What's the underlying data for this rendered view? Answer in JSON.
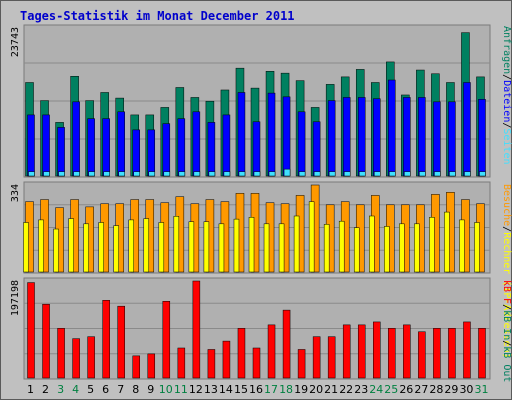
{
  "title": "Tages-Statistik im Monat December 2011",
  "colors": {
    "frame_bg": "#c0c0c0",
    "plot_bg": "#b0b0b0",
    "hits": "#008060",
    "files": "#0000ff",
    "pages": "#40e0ff",
    "visits": "#ff9900",
    "sites": "#ffff00",
    "kbytes": "#ff0000",
    "title": "#0000cc",
    "weekend_day": "#008040",
    "weekday": "#000000"
  },
  "chart_data": [
    {
      "type": "bar",
      "panel": "top",
      "ymax_label": "23743",
      "ylim": [
        0,
        23743
      ],
      "legend": [
        {
          "text": "Anfragen",
          "color": "#008060"
        },
        {
          "text": "/",
          "color": "#000000"
        },
        {
          "text": "Dateien",
          "color": "#0000ff"
        },
        {
          "text": "/",
          "color": "#000000"
        },
        {
          "text": "Seiten",
          "color": "#40e0ff"
        }
      ],
      "categories": [
        "1",
        "2",
        "3",
        "4",
        "5",
        "6",
        "7",
        "8",
        "9",
        "10",
        "11",
        "12",
        "13",
        "14",
        "15",
        "16",
        "17",
        "18",
        "19",
        "20",
        "21",
        "22",
        "23",
        "24",
        "25",
        "26",
        "27",
        "28",
        "29",
        "30",
        "31"
      ],
      "series": [
        {
          "name": "Anfragen",
          "color": "#008060",
          "values": [
            15000,
            12100,
            8600,
            16000,
            12100,
            13400,
            12500,
            9800,
            9800,
            11000,
            14200,
            12600,
            12000,
            13800,
            17300,
            14100,
            16800,
            16500,
            15300,
            11000,
            14700,
            15900,
            17100,
            15000,
            18300,
            13000,
            17000,
            16400,
            15000,
            23000,
            15900
          ]
        },
        {
          "name": "Dateien",
          "color": "#0000ff",
          "values": [
            9800,
            9800,
            7800,
            11900,
            9200,
            9200,
            10300,
            7400,
            7400,
            8400,
            9200,
            10300,
            8600,
            9800,
            13400,
            8700,
            13300,
            12700,
            10300,
            8700,
            12100,
            12600,
            12600,
            12400,
            15400,
            12600,
            12600,
            11900,
            11900,
            15000,
            12300
          ]
        },
        {
          "name": "Seiten",
          "color": "#40e0ff",
          "values": [
            700,
            700,
            700,
            700,
            700,
            700,
            700,
            700,
            700,
            700,
            700,
            700,
            700,
            700,
            700,
            700,
            700,
            1100,
            700,
            700,
            700,
            700,
            700,
            700,
            700,
            700,
            700,
            700,
            700,
            700,
            700
          ]
        }
      ]
    },
    {
      "type": "bar",
      "panel": "middle",
      "ymax_label": "334",
      "ylim": [
        0,
        334
      ],
      "legend": [
        {
          "text": "Besuche",
          "color": "#ff9900"
        },
        {
          "text": "/",
          "color": "#000000"
        },
        {
          "text": "Rechner (IP-Adressen)",
          "color": "#ffff00"
        }
      ],
      "categories": [
        "1",
        "2",
        "3",
        "4",
        "5",
        "6",
        "7",
        "8",
        "9",
        "10",
        "11",
        "12",
        "13",
        "14",
        "15",
        "16",
        "17",
        "18",
        "19",
        "20",
        "21",
        "22",
        "23",
        "24",
        "25",
        "26",
        "27",
        "28",
        "29",
        "30",
        "31"
      ],
      "series": [
        {
          "name": "Besuche",
          "color": "#ff9900",
          "values": [
            270,
            278,
            247,
            278,
            250,
            262,
            262,
            278,
            278,
            266,
            289,
            262,
            278,
            270,
            302,
            302,
            266,
            262,
            294,
            334,
            258,
            270,
            258,
            294,
            258,
            258,
            258,
            298,
            306,
            278,
            262
          ]
        },
        {
          "name": "Rechner (IP-Adressen)",
          "color": "#ffff00",
          "values": [
            190,
            200,
            165,
            205,
            185,
            190,
            178,
            200,
            205,
            190,
            214,
            193,
            193,
            185,
            203,
            210,
            185,
            185,
            215,
            270,
            183,
            195,
            170,
            215,
            175,
            185,
            185,
            210,
            230,
            200,
            190
          ]
        }
      ]
    },
    {
      "type": "bar",
      "panel": "bottom",
      "ymax_label": "197198",
      "ylim": [
        0,
        197198
      ],
      "legend": [
        {
          "text": "kB F",
          "color": "#ff0000"
        },
        {
          "text": "/",
          "color": "#000000"
        },
        {
          "text": "kB In",
          "color": "#008060"
        },
        {
          "text": "/",
          "color": "#000000"
        },
        {
          "text": "kB Out",
          "color": "#008060"
        }
      ],
      "categories": [
        "1",
        "2",
        "3",
        "4",
        "5",
        "6",
        "7",
        "8",
        "9",
        "10",
        "11",
        "12",
        "13",
        "14",
        "15",
        "16",
        "17",
        "18",
        "19",
        "20",
        "21",
        "22",
        "23",
        "24",
        "25",
        "26",
        "27",
        "28",
        "29",
        "30",
        "31"
      ],
      "series": [
        {
          "name": "kB F",
          "color": "#ff0000",
          "values": [
            194000,
            150000,
            101000,
            80000,
            84000,
            158000,
            146000,
            45000,
            49000,
            156000,
            61000,
            197198,
            58000,
            75000,
            101000,
            61000,
            108000,
            138000,
            58000,
            84000,
            84000,
            108000,
            108000,
            114000,
            101000,
            108000,
            94000,
            101000,
            101000,
            114000,
            101000
          ]
        }
      ],
      "weekend_days": [
        3,
        4,
        10,
        11,
        17,
        18,
        24,
        25,
        31
      ]
    }
  ]
}
